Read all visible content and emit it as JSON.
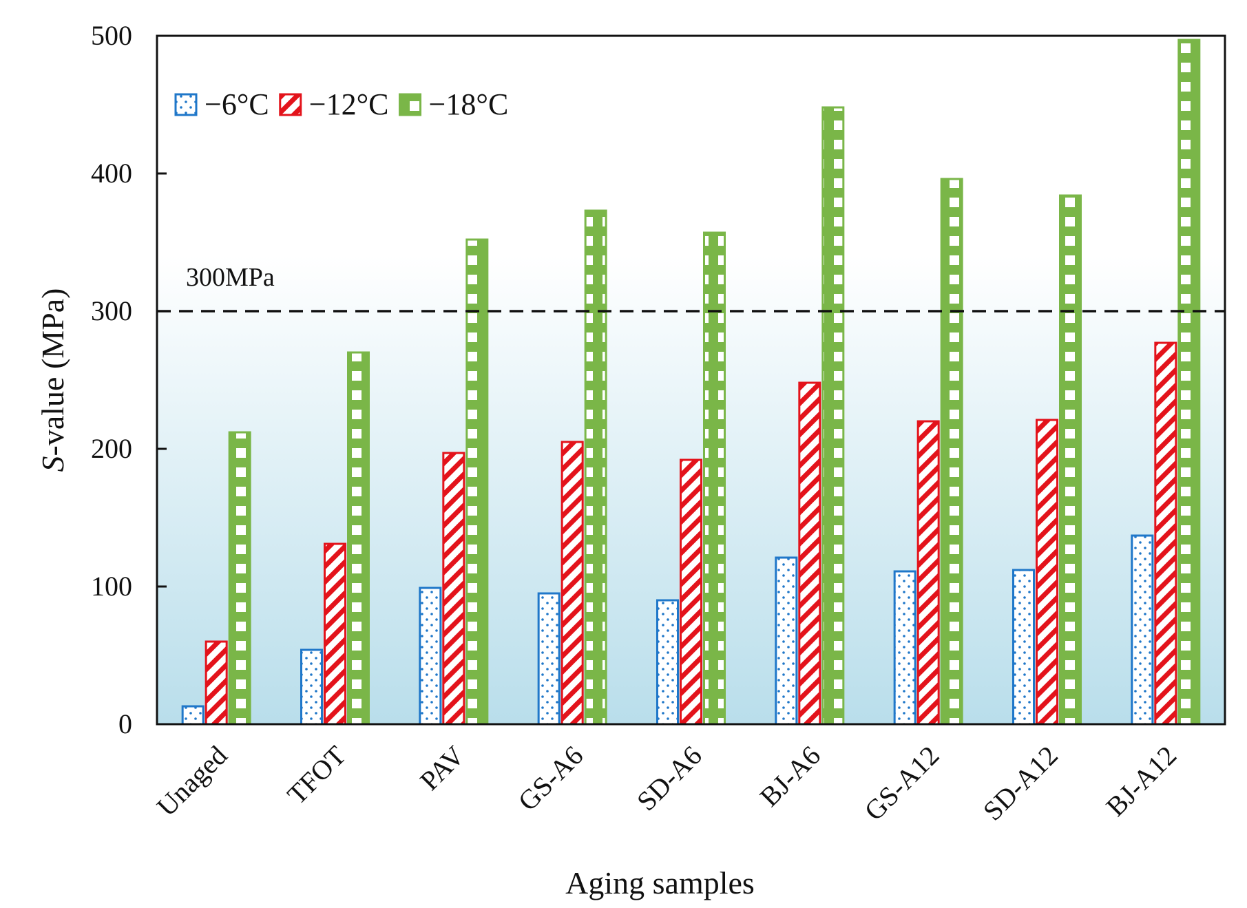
{
  "chart_data": {
    "type": "bar",
    "title": "",
    "xlabel": "Aging samples",
    "ylabel_italic": "S",
    "ylabel_rest": "-value (MPa)",
    "categories": [
      "Unaged",
      "TFOT",
      "PAV",
      "GS-A6",
      "SD-A6",
      "BJ-A6",
      "GS-A12",
      "SD-A12",
      "BJ-A12"
    ],
    "series": [
      {
        "name": "−6°C",
        "color": "#1f77c9",
        "pattern": "dots",
        "values": [
          13,
          54,
          99,
          95,
          90,
          121,
          111,
          112,
          137
        ]
      },
      {
        "name": "−12°C",
        "color": "#e3131b",
        "pattern": "diagonal",
        "values": [
          60,
          131,
          197,
          205,
          192,
          248,
          220,
          221,
          277
        ]
      },
      {
        "name": "−18°C",
        "color": "#7ab648",
        "pattern": "checker",
        "values": [
          212,
          270,
          352,
          373,
          357,
          448,
          396,
          384,
          497
        ]
      }
    ],
    "ylim": [
      0,
      500
    ],
    "yticks": [
      0,
      100,
      200,
      300,
      400,
      500
    ],
    "reference_line": {
      "value": 300,
      "label": "300MPa"
    },
    "legend_position": "top-left"
  }
}
